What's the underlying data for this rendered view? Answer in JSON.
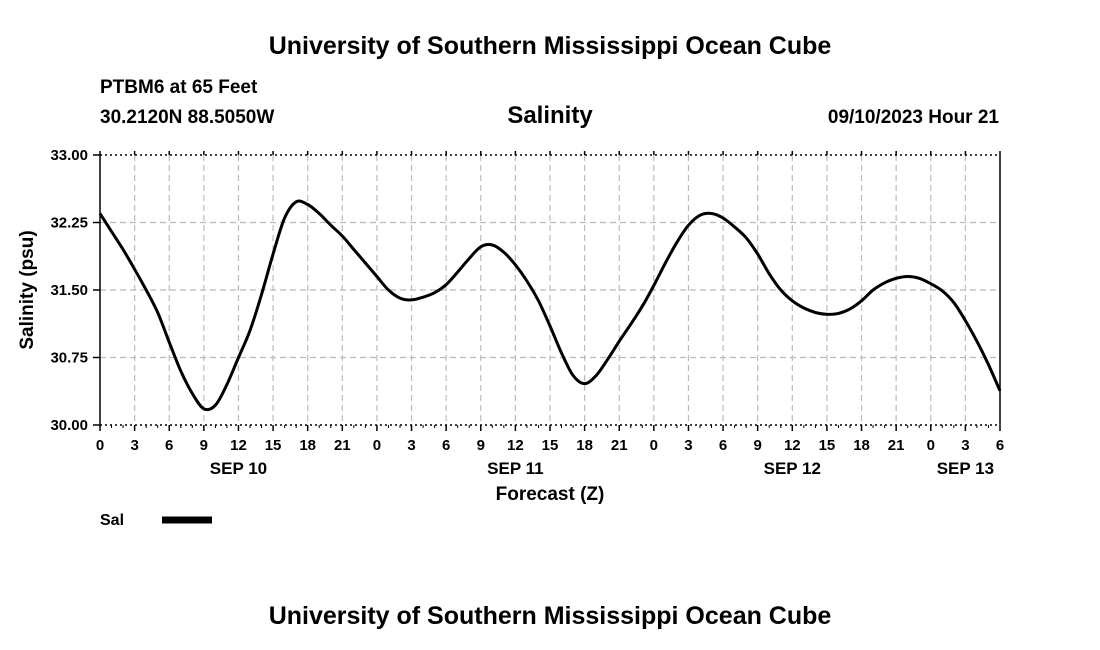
{
  "header": {
    "title_top": "University of Southern Mississippi Ocean Cube",
    "title_bottom": "University of Southern Mississippi Ocean Cube",
    "station": "PTBM6 at 65 Feet",
    "coords": "30.2120N  88.5050W",
    "datetime": "09/10/2023 Hour 21"
  },
  "colors": {
    "line": "#000000",
    "grid": "#bbbbbb",
    "background": "#ffffff"
  },
  "chart_data": {
    "type": "line",
    "title": "Salinity",
    "xlabel": "Forecast (Z)",
    "ylabel": "Salinity (psu)",
    "ylim": [
      30.0,
      33.0
    ],
    "xlim": [
      0,
      78
    ],
    "y_ticks": [
      "30.00",
      "30.75",
      "31.50",
      "32.25",
      "33.00"
    ],
    "y_tick_values": [
      30.0,
      30.75,
      31.5,
      32.25,
      33.0
    ],
    "x_tick_labels": [
      "0",
      "3",
      "6",
      "9",
      "12",
      "15",
      "18",
      "21",
      "0",
      "3",
      "6",
      "9",
      "12",
      "15",
      "18",
      "21",
      "0",
      "3",
      "6",
      "9",
      "12",
      "15",
      "18",
      "21",
      "0",
      "3",
      "6"
    ],
    "x_day_labels": [
      {
        "label": "SEP 10",
        "hour": 12
      },
      {
        "label": "SEP 11",
        "hour": 36
      },
      {
        "label": "SEP 12",
        "hour": 60
      },
      {
        "label": "SEP 13",
        "hour": 75
      }
    ],
    "grid": true,
    "legend": [
      {
        "name": "Sal",
        "placement": "bottom-left"
      }
    ],
    "series": [
      {
        "name": "Sal",
        "x": [
          0,
          1,
          2,
          3,
          4,
          5,
          6,
          7,
          8,
          9,
          10,
          11,
          12,
          13,
          14,
          15,
          16,
          17,
          18,
          19,
          20,
          21,
          22,
          23,
          24,
          25,
          26,
          27,
          28,
          29,
          30,
          31,
          32,
          33,
          34,
          35,
          36,
          37,
          38,
          39,
          40,
          41,
          42,
          43,
          44,
          45,
          46,
          47,
          48,
          49,
          50,
          51,
          52,
          53,
          54,
          55,
          56,
          57,
          58,
          59,
          60,
          61,
          62,
          63,
          64,
          65,
          66,
          67,
          68,
          69,
          70,
          71,
          72,
          73,
          74,
          75,
          76,
          77,
          78
        ],
        "values": [
          32.35,
          32.15,
          31.95,
          31.73,
          31.5,
          31.25,
          30.92,
          30.6,
          30.35,
          30.18,
          30.22,
          30.45,
          30.75,
          31.05,
          31.45,
          31.9,
          32.3,
          32.48,
          32.45,
          32.35,
          32.22,
          32.1,
          31.95,
          31.8,
          31.65,
          31.5,
          31.41,
          31.39,
          31.42,
          31.47,
          31.56,
          31.7,
          31.85,
          31.98,
          32.0,
          31.92,
          31.78,
          31.6,
          31.38,
          31.1,
          30.8,
          30.55,
          30.46,
          30.55,
          30.73,
          30.93,
          31.12,
          31.32,
          31.55,
          31.8,
          32.03,
          32.22,
          32.33,
          32.35,
          32.3,
          32.2,
          32.08,
          31.9,
          31.68,
          31.5,
          31.38,
          31.3,
          31.25,
          31.23,
          31.24,
          31.29,
          31.38,
          31.5,
          31.58,
          31.63,
          31.65,
          31.63,
          31.57,
          31.49,
          31.36,
          31.16,
          30.93,
          30.67,
          30.38
        ]
      }
    ]
  }
}
